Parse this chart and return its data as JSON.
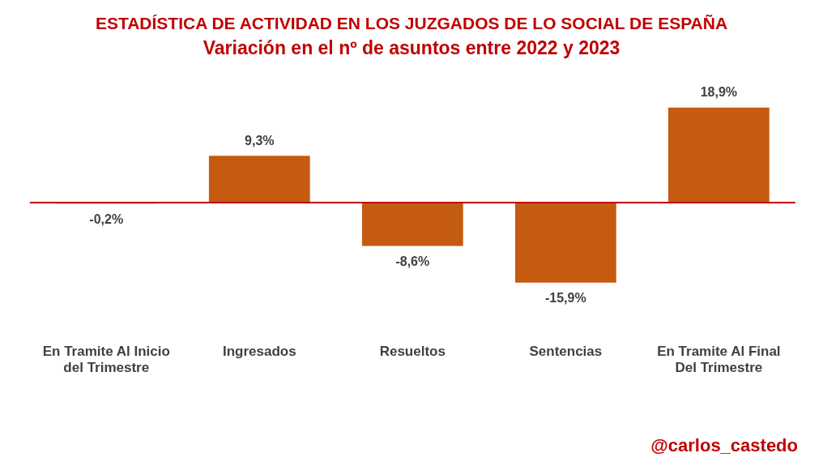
{
  "chart_data": {
    "type": "bar",
    "title": "ESTADÍSTICA DE ACTIVIDAD EN LOS JUZGADOS DE LO SOCIAL DE ESPAÑA",
    "subtitle": "Variación en el nº de asuntos entre 2022 y 2023",
    "categories": [
      "En Tramite Al Inicio del Trimestre",
      "Ingresados",
      "Resueltos",
      "Sentencias",
      "En Tramite Al Final Del Trimestre"
    ],
    "values": [
      -0.2,
      9.3,
      -8.6,
      -15.9,
      18.9
    ],
    "value_labels": [
      "-0,2%",
      "9,3%",
      "-8,6%",
      "-15,9%",
      "18,9%"
    ],
    "color": "#c55a11",
    "tick_labels": "x",
    "grid": false,
    "legend": false,
    "ref_lines": [
      {
        "axis": "y",
        "value": 0,
        "color": "#c00000"
      }
    ],
    "annotations": [
      "@carlos_castedo"
    ]
  }
}
